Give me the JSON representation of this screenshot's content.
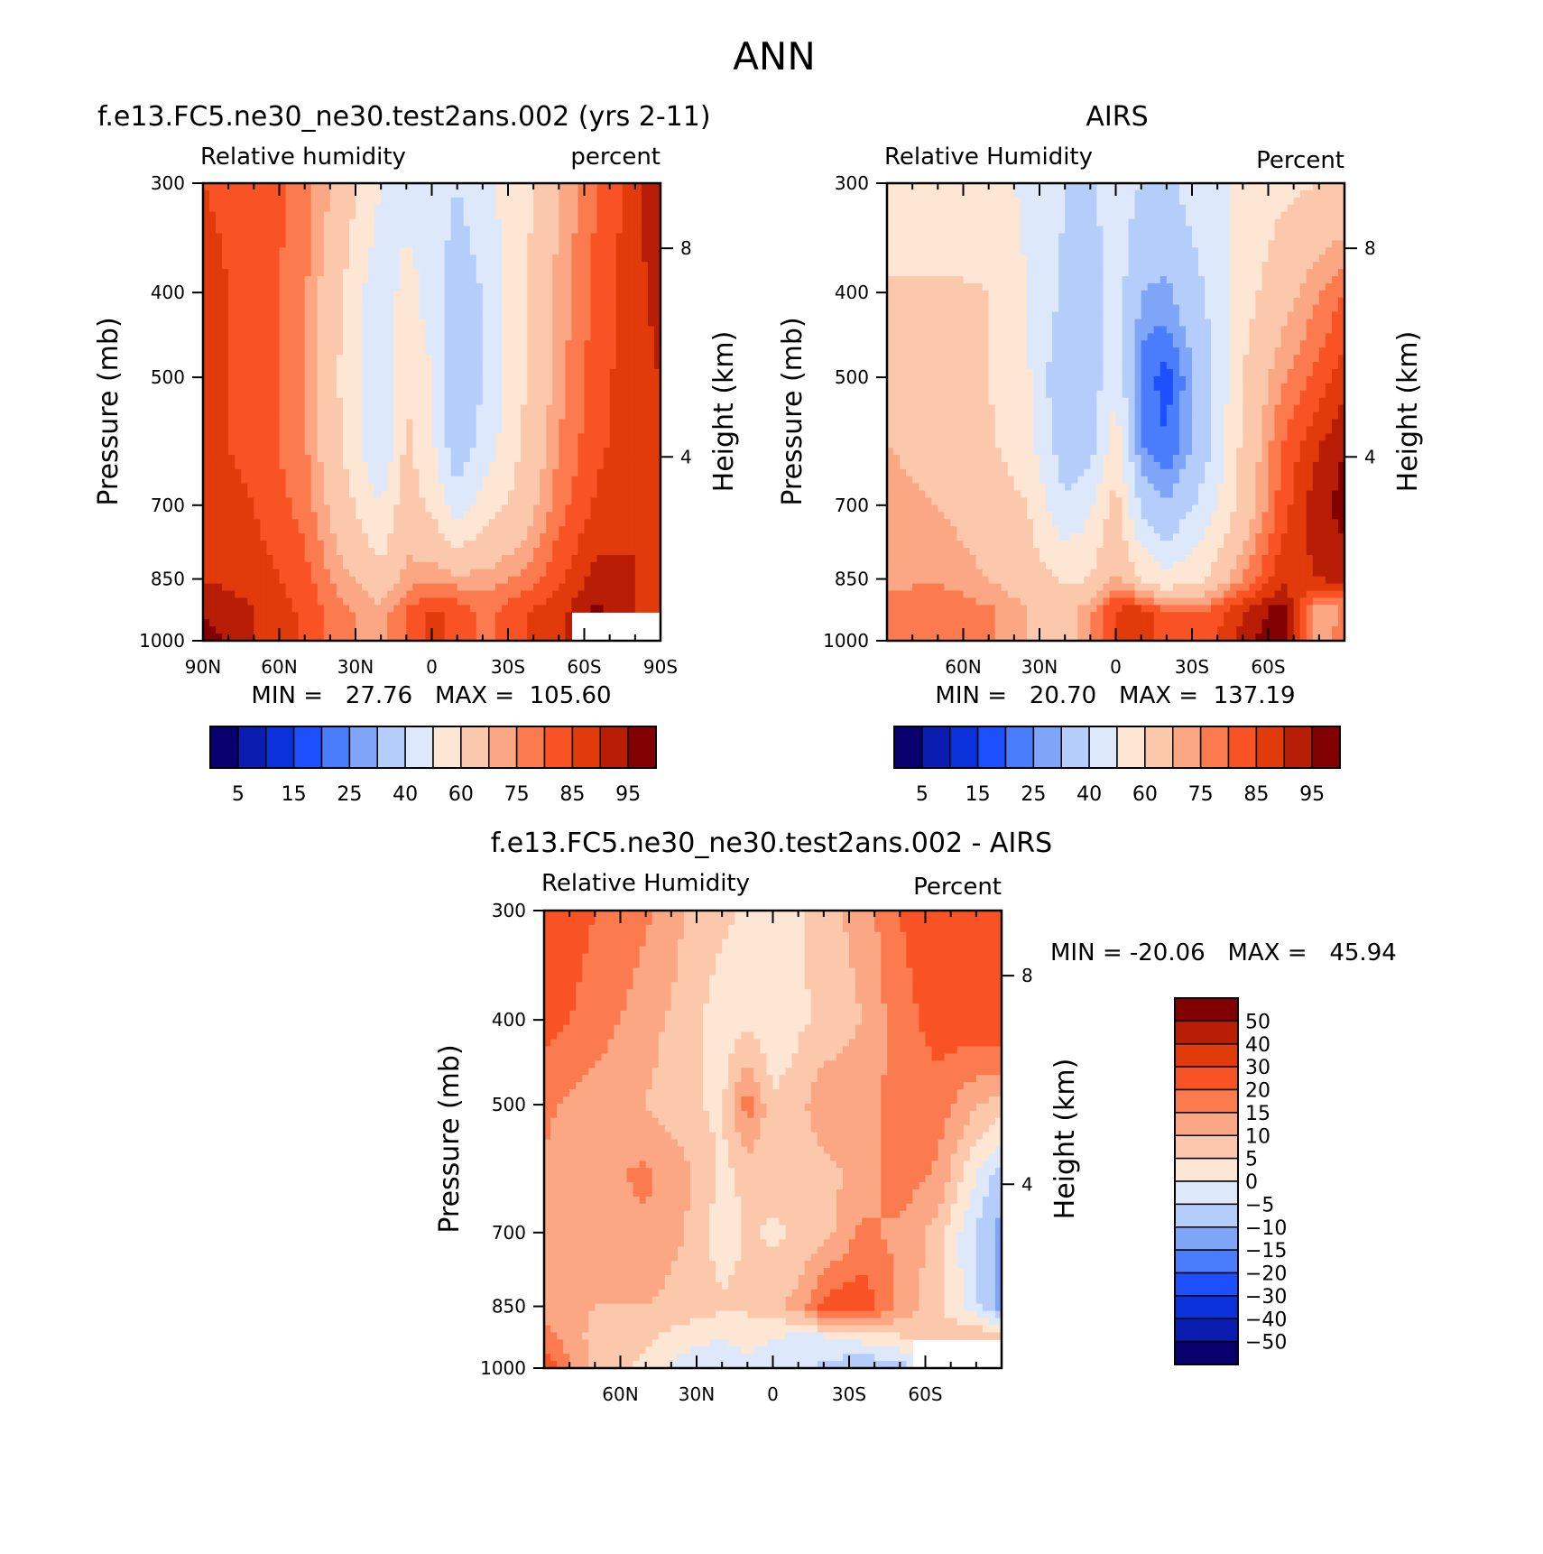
{
  "figure": {
    "title": "ANN"
  },
  "palettes": {
    "full": [
      "#08006e",
      "#0b1cb0",
      "#0b32da",
      "#1e4fff",
      "#4a7dfb",
      "#7ea5f7",
      "#b5cdfb",
      "#dde9fb",
      "#fde6d4",
      "#fcc8ac",
      "#fba784",
      "#fb7b4f",
      "#f95325",
      "#e13a0b",
      "#b81d06",
      "#830002"
    ],
    "diff": [
      "#830002",
      "#b81d06",
      "#e13a0b",
      "#f95325",
      "#fb7b4f",
      "#fba784",
      "#fcc8ac",
      "#fde6d4",
      "#dde9fb",
      "#b5cdfb",
      "#7ea5f7",
      "#4a7dfb",
      "#1e4fff",
      "#0b32da",
      "#0b1cb0",
      "#08006e"
    ]
  },
  "chart_data": [
    {
      "type": "heatmap",
      "panel": "model",
      "title": "f.e13.FC5.ne30_ne30.test2ans.002 (yrs 2-11)",
      "left_label": "Relative humidity",
      "right_label": "percent",
      "ylabel": "Pressure (mb)",
      "y2label": "Height (km)",
      "xticks": [
        "90N",
        "60N",
        "30N",
        "0",
        "30S",
        "60S",
        "90S"
      ],
      "yticks": [
        "300",
        "400",
        "500",
        "700",
        "850",
        "1000"
      ],
      "y2ticks": [
        "8",
        "4"
      ],
      "xlim": [
        90,
        -90
      ],
      "ylim": [
        1000,
        300
      ],
      "stats_text": "MIN =   27.76   MAX =  105.60",
      "min": 27.76,
      "max": 105.6,
      "colorbar_labels": [
        "5",
        "15",
        "25",
        "40",
        "60",
        "75",
        "85",
        "95"
      ],
      "colorbar_orientation": "horizontal",
      "latitudes": [
        90,
        70,
        50,
        35,
        20,
        10,
        0,
        -10,
        -20,
        -35,
        -50,
        -65,
        -80,
        -90
      ],
      "pressures": [
        300,
        400,
        500,
        600,
        700,
        850,
        925,
        1000
      ],
      "values": [
        [
          85,
          84,
          78,
          66,
          50,
          45,
          48,
          40,
          48,
          55,
          70,
          80,
          88,
          96
        ],
        [
          86,
          84,
          76,
          60,
          42,
          55,
          45,
          32,
          40,
          58,
          72,
          82,
          88,
          92
        ],
        [
          86,
          84,
          76,
          58,
          40,
          60,
          50,
          30,
          40,
          58,
          73,
          83,
          88,
          90
        ],
        [
          86,
          84,
          76,
          60,
          40,
          62,
          52,
          32,
          44,
          60,
          75,
          84,
          88,
          89
        ],
        [
          87,
          85,
          78,
          64,
          50,
          66,
          58,
          45,
          54,
          64,
          78,
          86,
          90,
          88
        ],
        [
          90,
          88,
          82,
          72,
          64,
          72,
          74,
          72,
          72,
          76,
          84,
          92,
          90,
          88
        ],
        [
          94,
          90,
          84,
          76,
          72,
          80,
          86,
          84,
          78,
          84,
          88,
          96,
          90,
          88
        ],
        [
          98,
          90,
          84,
          76,
          72,
          80,
          86,
          84,
          78,
          84,
          88,
          96,
          90,
          88
        ]
      ],
      "missing_lat_min": -55,
      "missing_p_min": 925
    },
    {
      "type": "heatmap",
      "panel": "obs",
      "title": "AIRS",
      "left_label": "Relative Humidity",
      "right_label": "Percent",
      "ylabel": "Pressure (mb)",
      "y2label": "Height (km)",
      "xticks": [
        "60N",
        "30N",
        "0",
        "30S",
        "60S"
      ],
      "yticks": [
        "300",
        "400",
        "500",
        "700",
        "850",
        "1000"
      ],
      "y2ticks": [
        "8",
        "4"
      ],
      "xlim": [
        90,
        -90
      ],
      "ylim": [
        1000,
        300
      ],
      "stats_text": "MIN =   20.70   MAX =  137.19",
      "min": 20.7,
      "max": 137.19,
      "colorbar_labels": [
        "5",
        "15",
        "25",
        "40",
        "60",
        "75",
        "85",
        "95"
      ],
      "colorbar_orientation": "horizontal",
      "latitudes": [
        90,
        70,
        50,
        35,
        20,
        10,
        0,
        -10,
        -20,
        -35,
        -50,
        -65,
        -80,
        -90
      ],
      "pressures": [
        300,
        400,
        500,
        600,
        700,
        850,
        925,
        1000
      ],
      "values": [
        [
          50,
          52,
          55,
          48,
          40,
          38,
          45,
          40,
          38,
          46,
          52,
          58,
          60,
          62
        ],
        [
          62,
          62,
          60,
          50,
          38,
          35,
          45,
          30,
          28,
          40,
          56,
          66,
          75,
          80
        ],
        [
          66,
          64,
          60,
          52,
          30,
          34,
          48,
          22,
          18,
          34,
          60,
          74,
          82,
          88
        ],
        [
          70,
          68,
          62,
          54,
          34,
          36,
          56,
          25,
          20,
          36,
          62,
          80,
          90,
          95
        ],
        [
          72,
          70,
          66,
          60,
          42,
          48,
          64,
          38,
          30,
          44,
          64,
          82,
          94,
          97
        ],
        [
          74,
          74,
          70,
          66,
          58,
          60,
          72,
          60,
          52,
          60,
          75,
          88,
          90,
          92
        ],
        [
          76,
          80,
          76,
          70,
          66,
          74,
          86,
          88,
          80,
          80,
          90,
          98,
          70,
          75
        ],
        [
          76,
          80,
          76,
          70,
          66,
          74,
          86,
          90,
          82,
          82,
          92,
          100,
          72,
          80
        ]
      ],
      "missing_lat_min": -95,
      "missing_p_min": 2000
    },
    {
      "type": "heatmap",
      "panel": "difference",
      "title": "f.e13.FC5.ne30_ne30.test2ans.002 - AIRS",
      "left_label": "Relative Humidity",
      "right_label": "Percent",
      "ylabel": "Pressure (mb)",
      "y2label": "Height (km)",
      "xticks": [
        "60N",
        "30N",
        "0",
        "30S",
        "60S"
      ],
      "yticks": [
        "300",
        "400",
        "500",
        "700",
        "850",
        "1000"
      ],
      "y2ticks": [
        "8",
        "4"
      ],
      "xlim": [
        90,
        -90
      ],
      "ylim": [
        1000,
        300
      ],
      "stats_text": "MIN = -20.06   MAX =   45.94",
      "min": -20.06,
      "max": 45.94,
      "colorbar_labels": [
        "50",
        "40",
        "30",
        "20",
        "15",
        "10",
        "5",
        "0",
        "-5",
        "-10",
        "-15",
        "-20",
        "-30",
        "-40",
        "-50"
      ],
      "colorbar_orientation": "vertical",
      "latitudes": [
        90,
        70,
        50,
        35,
        20,
        10,
        0,
        -10,
        -20,
        -35,
        -50,
        -65,
        -80,
        -90
      ],
      "pressures": [
        300,
        400,
        500,
        600,
        700,
        850,
        925,
        1000
      ],
      "values": [
        [
          24,
          20,
          16,
          10,
          6,
          4,
          2,
          4,
          8,
          12,
          20,
          24,
          28,
          30
        ],
        [
          22,
          18,
          12,
          8,
          2,
          4,
          0,
          4,
          6,
          10,
          18,
          22,
          24,
          25
        ],
        [
          16,
          12,
          10,
          6,
          4,
          18,
          6,
          8,
          14,
          14,
          16,
          18,
          10,
          8
        ],
        [
          14,
          14,
          16,
          12,
          4,
          6,
          8,
          6,
          8,
          12,
          18,
          14,
          0,
          -8
        ],
        [
          12,
          12,
          14,
          10,
          2,
          6,
          4,
          6,
          8,
          16,
          14,
          8,
          -6,
          -12
        ],
        [
          12,
          10,
          10,
          8,
          6,
          6,
          8,
          12,
          22,
          24,
          14,
          6,
          -4,
          -12
        ],
        [
          18,
          8,
          6,
          2,
          0,
          2,
          0,
          -2,
          -2,
          2,
          4,
          8,
          10,
          10
        ],
        [
          24,
          8,
          4,
          -2,
          -4,
          -2,
          -2,
          -4,
          -6,
          -10,
          -8,
          6,
          10,
          10
        ]
      ],
      "missing_lat_min": -55,
      "missing_p_min": 925
    }
  ]
}
